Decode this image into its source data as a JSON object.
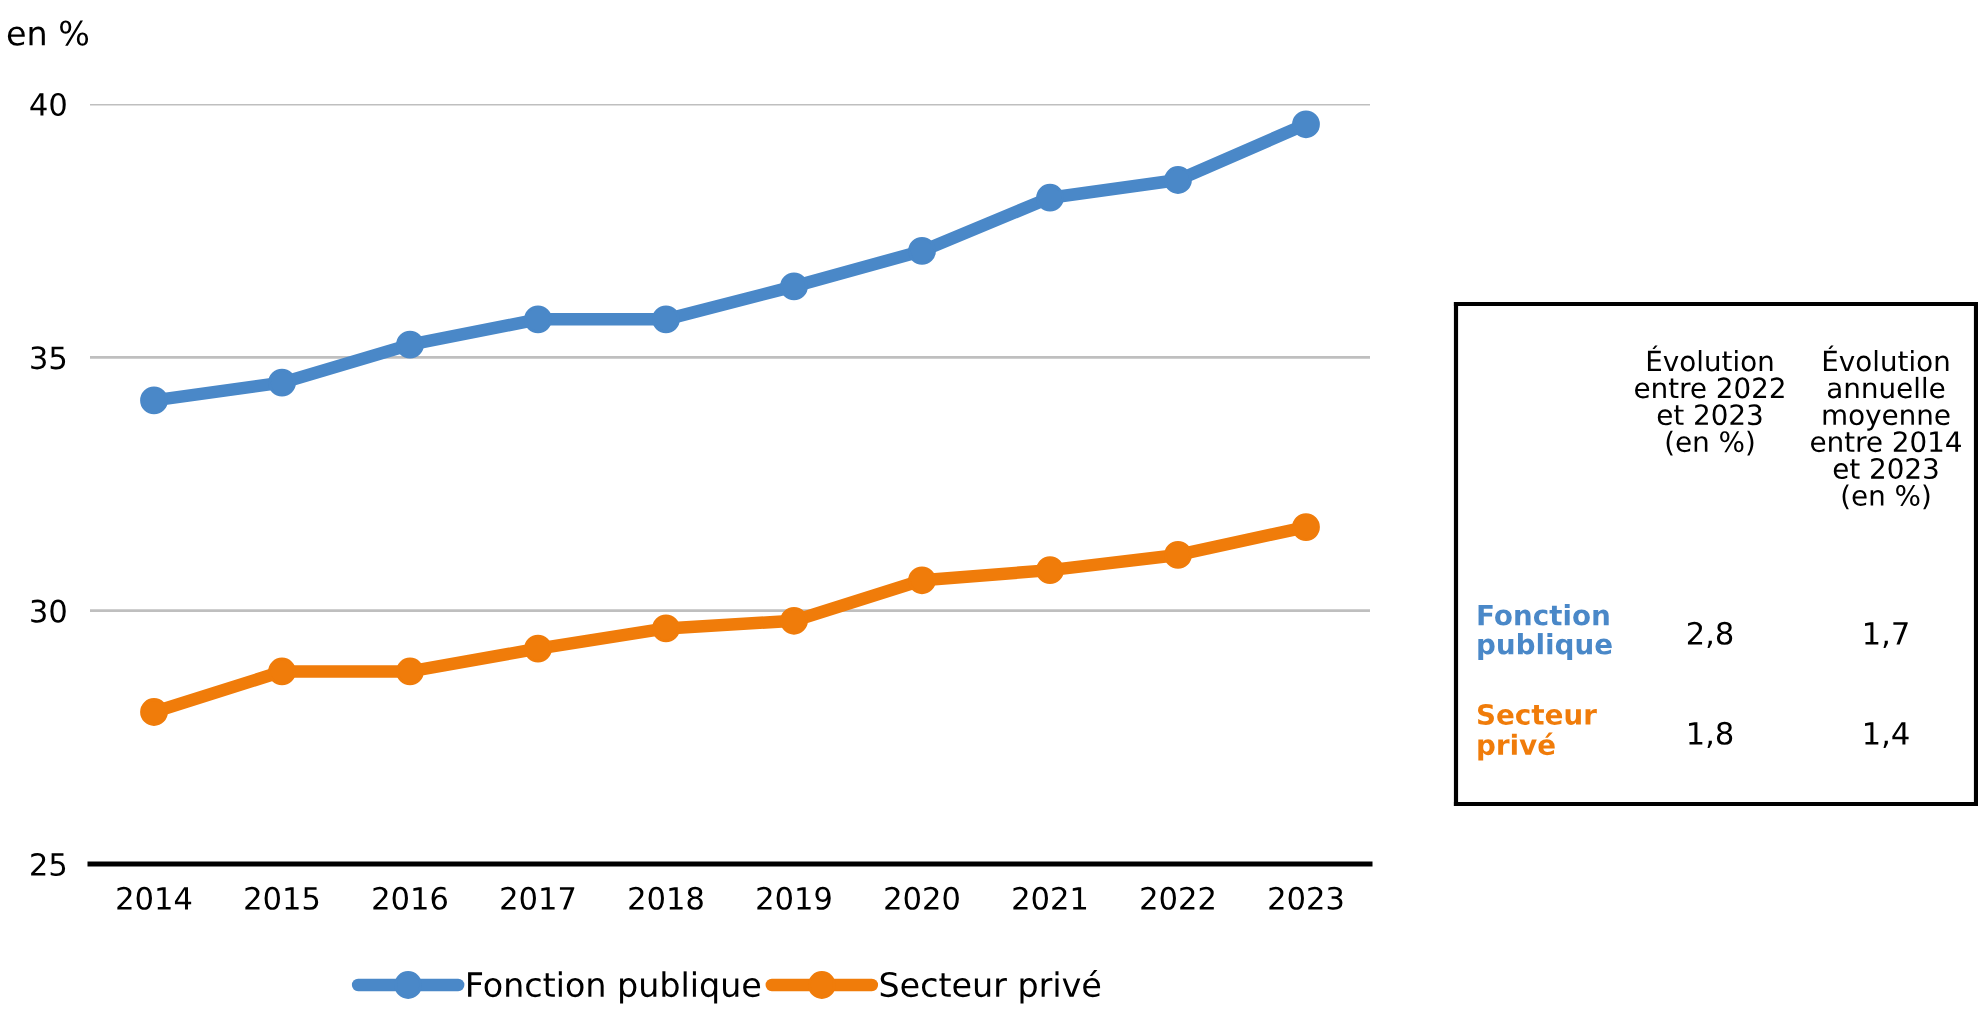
{
  "chart_data": [
    {
      "type": "line",
      "ylabel": "en %",
      "categories": [
        "2014",
        "2015",
        "2016",
        "2017",
        "2018",
        "2019",
        "2020",
        "2021",
        "2022",
        "2023"
      ],
      "series": [
        {
          "name": "Fonction publique",
          "color": "#4a88c8",
          "values": [
            34.15,
            34.5,
            35.25,
            35.75,
            35.75,
            36.4,
            37.1,
            38.15,
            38.5,
            39.6
          ]
        },
        {
          "name": "Secteur privé",
          "color": "#f07c0a",
          "values": [
            28.0,
            28.8,
            28.8,
            29.25,
            29.65,
            29.8,
            30.6,
            30.8,
            31.1,
            31.65
          ]
        }
      ],
      "ylim": [
        25,
        40
      ],
      "yticks": [
        25,
        30,
        35,
        40
      ],
      "grid": "y",
      "legend": "bottom",
      "marker": "circle",
      "line_style": "solid"
    },
    {
      "type": "other",
      "categories": [
        "Évolution\nentre 2022\net 2023\n(en %)",
        "Évolution\nannuelle\nmoyenne\nentre 2014\net 2023\n(en %)"
      ],
      "y_categories": [
        "Fonction\npublique",
        "Secteur\nprivé"
      ],
      "colors": [
        "#4a88c8",
        "#f07c0a"
      ],
      "cell_labels": [
        [
          "2,8",
          "1,7"
        ],
        [
          "1,8",
          "1,4"
        ]
      ]
    }
  ]
}
